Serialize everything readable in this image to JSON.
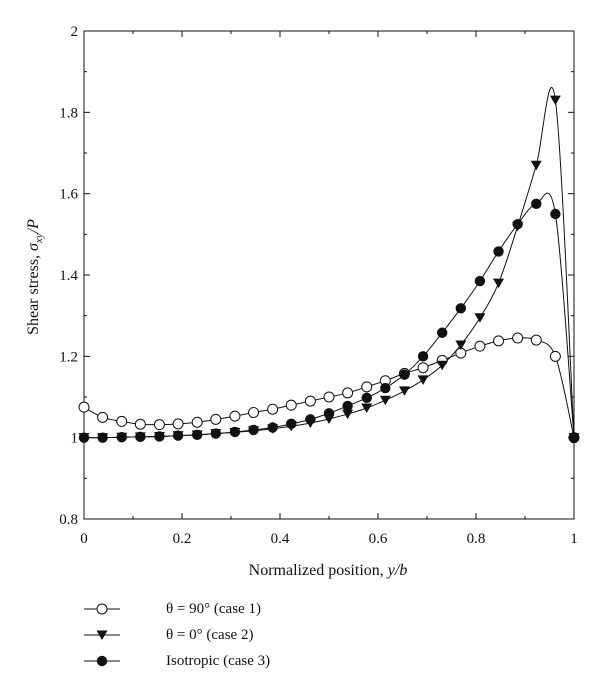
{
  "chart_data": {
    "type": "line",
    "xlabel_prefix": "Normalized position, ",
    "xlabel_var": "y/b",
    "ylabel_prefix": "Shear stress, ",
    "ylabel_sym": "σ",
    "ylabel_sub": "xy",
    "ylabel_suffix": "/P",
    "xlim": [
      0,
      1
    ],
    "ylim": [
      0.8,
      2
    ],
    "xticks": [
      0,
      0.2,
      0.4,
      0.6,
      0.8,
      1
    ],
    "xtick_labels": [
      "0",
      "0.2",
      "0.4",
      "0.6",
      "0.8",
      "1"
    ],
    "yticks": [
      0.8,
      1,
      1.2,
      1.4,
      1.6,
      1.8,
      2
    ],
    "ytick_labels": [
      "0.8",
      "1",
      "1.2",
      "1.4",
      "1.6",
      "1.8",
      "2"
    ],
    "legend_position": "bottom-left, below plot",
    "series": [
      {
        "name": "θ = 90° (case 1)",
        "marker": "open-circle",
        "color": "#111111",
        "x": [
          0,
          0.038,
          0.077,
          0.115,
          0.154,
          0.192,
          0.231,
          0.269,
          0.308,
          0.346,
          0.385,
          0.423,
          0.462,
          0.5,
          0.538,
          0.577,
          0.615,
          0.654,
          0.692,
          0.731,
          0.769,
          0.808,
          0.846,
          0.885,
          0.923,
          0.962,
          1.0
        ],
        "y": [
          1.075,
          1.05,
          1.04,
          1.033,
          1.032,
          1.034,
          1.038,
          1.045,
          1.053,
          1.062,
          1.07,
          1.08,
          1.09,
          1.1,
          1.11,
          1.125,
          1.14,
          1.158,
          1.172,
          1.19,
          1.208,
          1.225,
          1.238,
          1.245,
          1.24,
          1.2,
          1.0
        ]
      },
      {
        "name": "θ = 0° (case 2)",
        "marker": "filled-triangle-down",
        "color": "#111111",
        "x": [
          0,
          0.038,
          0.077,
          0.115,
          0.154,
          0.192,
          0.231,
          0.269,
          0.308,
          0.346,
          0.385,
          0.423,
          0.462,
          0.5,
          0.538,
          0.577,
          0.615,
          0.654,
          0.692,
          0.731,
          0.769,
          0.808,
          0.846,
          0.885,
          0.923,
          0.962,
          1.0
        ],
        "y": [
          1.0,
          1.0,
          1.001,
          1.002,
          1.003,
          1.005,
          1.007,
          1.01,
          1.013,
          1.017,
          1.022,
          1.028,
          1.036,
          1.046,
          1.058,
          1.073,
          1.092,
          1.115,
          1.142,
          1.178,
          1.228,
          1.295,
          1.38,
          1.52,
          1.67,
          1.83,
          1.0
        ]
      },
      {
        "name": "Isotropic (case 3)",
        "marker": "filled-circle",
        "color": "#111111",
        "x": [
          0,
          0.038,
          0.077,
          0.115,
          0.154,
          0.192,
          0.231,
          0.269,
          0.308,
          0.346,
          0.385,
          0.423,
          0.462,
          0.5,
          0.538,
          0.577,
          0.615,
          0.654,
          0.692,
          0.731,
          0.769,
          0.808,
          0.846,
          0.885,
          0.923,
          0.962,
          1.0
        ],
        "y": [
          1.0,
          1.0,
          1.001,
          1.002,
          1.003,
          1.005,
          1.007,
          1.01,
          1.014,
          1.019,
          1.025,
          1.034,
          1.045,
          1.06,
          1.078,
          1.098,
          1.122,
          1.155,
          1.2,
          1.258,
          1.318,
          1.385,
          1.458,
          1.525,
          1.575,
          1.55,
          1.0
        ]
      }
    ]
  }
}
